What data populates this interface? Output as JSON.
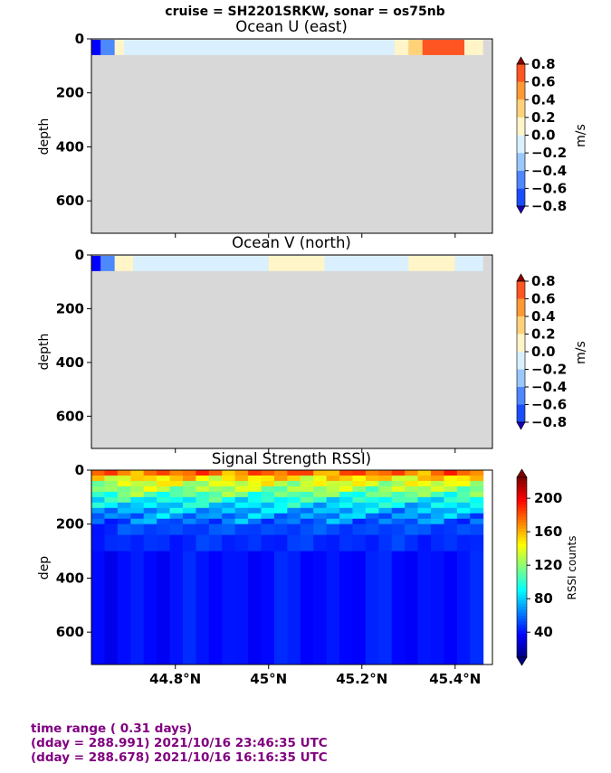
{
  "suptitle": "cruise = SH2201SRKW,  sonar = os75nb",
  "footer": {
    "line1": "time range ( 0.31 days)",
    "line2": "(dday = 288.991) 2021/10/16 23:46:35 UTC",
    "line3": "(dday = 288.678) 2021/10/16 16:16:35 UTC"
  },
  "colors": {
    "nodata": "#d8d8d8",
    "vel_levels": [
      "#0000ff",
      "#1a4dff",
      "#4d88ff",
      "#99c8ff",
      "#daf0ff",
      "#fff5c8",
      "#ffd27a",
      "#ff9933",
      "#ff5522",
      "#cc1100"
    ],
    "vel_under": "#1a00b3",
    "vel_over": "#8b0000",
    "rssi_cmap": "jet"
  },
  "chart_data": [
    {
      "type": "heatmap",
      "title": "Ocean U (east)",
      "ylabel": "depth",
      "xlabel": "",
      "ylim": [
        720,
        0
      ],
      "yticks": [
        0,
        200,
        400,
        600
      ],
      "xlim": [
        44.62,
        45.48
      ],
      "xticks": [
        44.8,
        45.0,
        45.2,
        45.4
      ],
      "colorbar": {
        "label": "m/s",
        "levels": [
          -0.8,
          -0.6,
          -0.4,
          -0.2,
          0.0,
          0.2,
          0.4,
          0.6,
          0.8
        ],
        "ticklabels": [
          "−0.8",
          "−0.6",
          "−0.4",
          "−0.2",
          "0.0",
          "0.2",
          "0.4",
          "0.6",
          "0.8"
        ]
      },
      "data_depth_max": 60,
      "bands": [
        {
          "x0": 44.62,
          "x1": 44.64,
          "class": "strong_negative"
        },
        {
          "x0": 44.64,
          "x1": 44.67,
          "class": "moderate_negative"
        },
        {
          "x0": 44.67,
          "x1": 44.69,
          "class": "weak_positive"
        },
        {
          "x0": 44.69,
          "x1": 44.82,
          "class": "weak_negative"
        },
        {
          "x0": 44.82,
          "x1": 45.15,
          "class": "weak_negative"
        },
        {
          "x0": 45.15,
          "x1": 45.27,
          "class": "weak_negative"
        },
        {
          "x0": 45.27,
          "x1": 45.3,
          "class": "weak_positive"
        },
        {
          "x0": 45.3,
          "x1": 45.33,
          "class": "moderate_positive"
        },
        {
          "x0": 45.33,
          "x1": 45.42,
          "class": "strong_positive"
        },
        {
          "x0": 45.42,
          "x1": 45.46,
          "class": "weak_positive"
        }
      ]
    },
    {
      "type": "heatmap",
      "title": "Ocean V (north)",
      "ylabel": "depth",
      "xlabel": "",
      "ylim": [
        720,
        0
      ],
      "yticks": [
        0,
        200,
        400,
        600
      ],
      "xlim": [
        44.62,
        45.48
      ],
      "xticks": [
        44.8,
        45.0,
        45.2,
        45.4
      ],
      "colorbar": {
        "label": "m/s",
        "levels": [
          -0.8,
          -0.6,
          -0.4,
          -0.2,
          0.0,
          0.2,
          0.4,
          0.6,
          0.8
        ],
        "ticklabels": [
          "−0.8",
          "−0.6",
          "−0.4",
          "−0.2",
          "0.0",
          "0.2",
          "0.4",
          "0.6",
          "0.8"
        ]
      },
      "data_depth_max": 60,
      "bands": [
        {
          "x0": 44.62,
          "x1": 44.64,
          "class": "strong_negative"
        },
        {
          "x0": 44.64,
          "x1": 44.67,
          "class": "moderate_negative"
        },
        {
          "x0": 44.67,
          "x1": 44.71,
          "class": "weak_positive"
        },
        {
          "x0": 44.71,
          "x1": 45.0,
          "class": "weak_negative"
        },
        {
          "x0": 45.0,
          "x1": 45.12,
          "class": "weak_positive"
        },
        {
          "x0": 45.12,
          "x1": 45.3,
          "class": "weak_negative"
        },
        {
          "x0": 45.3,
          "x1": 45.4,
          "class": "weak_positive"
        },
        {
          "x0": 45.4,
          "x1": 45.46,
          "class": "weak_negative"
        }
      ]
    },
    {
      "type": "heatmap",
      "title": "Signal Strength RSSI)",
      "ylabel": "dep",
      "xlabel": "",
      "ylim": [
        720,
        0
      ],
      "yticks": [
        0,
        200,
        400,
        600
      ],
      "xlim": [
        44.62,
        45.48
      ],
      "xticks": [
        44.8,
        45.0,
        45.2,
        45.4
      ],
      "xticklabels": [
        "44.8°N",
        "45°N",
        "45.2°N",
        "45.4°N"
      ],
      "colorbar": {
        "label": "RSSI counts",
        "ticks": [
          40,
          80,
          120,
          160,
          200
        ],
        "ticklabels": [
          "40",
          "80",
          "120",
          "160",
          "200"
        ],
        "vmin": 10,
        "vmax": 225
      },
      "n_columns": 30,
      "depth_bins": [
        20,
        40,
        60,
        80,
        100,
        120,
        140,
        160,
        180,
        200,
        240,
        300,
        720
      ],
      "rssi_profile": [
        175,
        150,
        135,
        125,
        110,
        95,
        85,
        75,
        68,
        60,
        52,
        46,
        40
      ]
    }
  ]
}
